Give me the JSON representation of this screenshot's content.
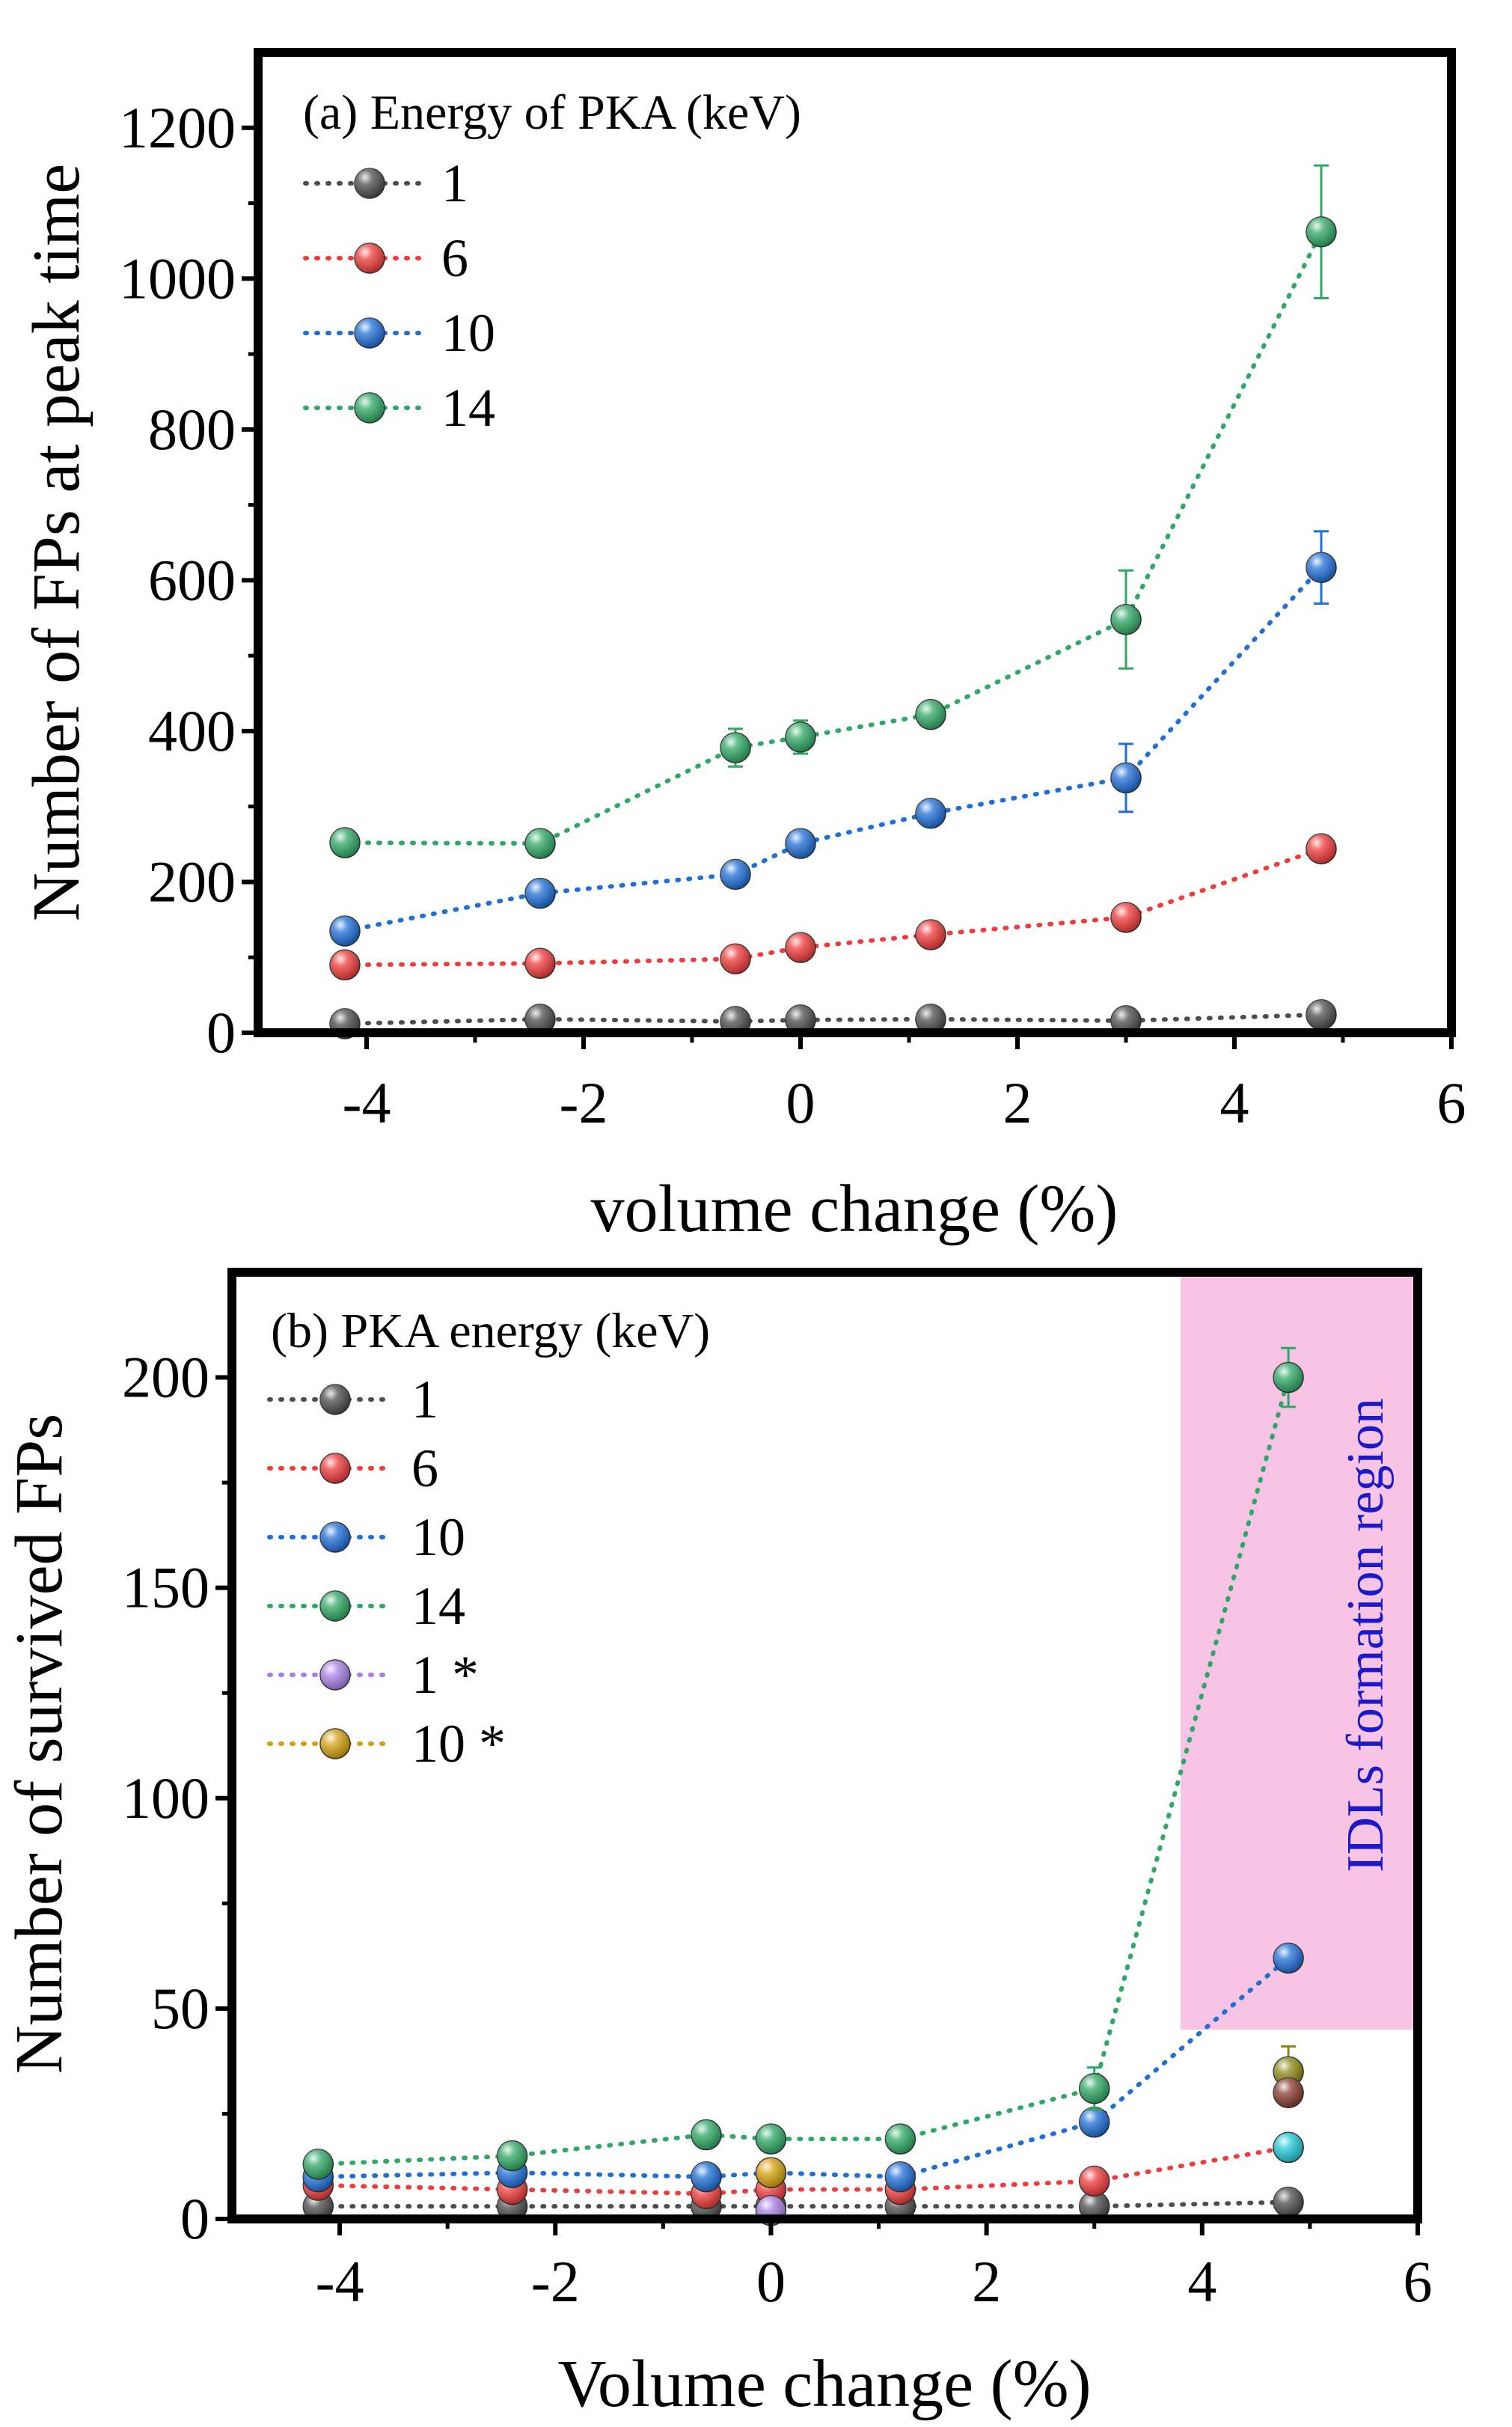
{
  "chart_data": [
    {
      "type": "line",
      "panel": "a",
      "xlabel": "volume change (%)",
      "ylabel": "Number of FPs at peak time",
      "xlim": [
        -5,
        6
      ],
      "ylim": [
        0,
        1300
      ],
      "xticks": [
        -4,
        -2,
        0,
        2,
        4,
        6
      ],
      "xtick_labels": [
        "-4",
        "-2",
        "0",
        "2",
        "4",
        "6"
      ],
      "yticks": [
        0,
        200,
        400,
        600,
        800,
        1000,
        1200
      ],
      "ytick_labels": [
        "0",
        "200",
        "400",
        "600",
        "800",
        "1000",
        "1200"
      ],
      "legend_title": "(a) Energy of PKA (keV)",
      "legend_position": "top-left",
      "series": [
        {
          "name": "1",
          "color": "#4d4d4d",
          "x": [
            -4.2,
            -2.4,
            -0.6,
            0,
            1.2,
            3.0,
            4.8
          ],
          "values": [
            12,
            18,
            15,
            17,
            18,
            16,
            24
          ],
          "errors": [
            0,
            0,
            0,
            0,
            0,
            0,
            0
          ]
        },
        {
          "name": "6",
          "color": "#ee3b3b",
          "x": [
            -4.2,
            -2.4,
            -0.6,
            0,
            1.2,
            3.0,
            4.8
          ],
          "values": [
            90,
            92,
            98,
            113,
            130,
            153,
            244
          ],
          "errors": [
            0,
            0,
            0,
            0,
            0,
            0,
            0
          ]
        },
        {
          "name": "10",
          "color": "#1f6fd6",
          "x": [
            -4.2,
            -2.4,
            -0.6,
            0,
            1.2,
            3.0,
            4.8
          ],
          "values": [
            135,
            185,
            210,
            251,
            291,
            338,
            617
          ],
          "errors": [
            0,
            0,
            0,
            0,
            0,
            45,
            48
          ]
        },
        {
          "name": "14",
          "color": "#2fa865",
          "x": [
            -4.2,
            -2.4,
            -0.6,
            0,
            1.2,
            3.0,
            4.8
          ],
          "values": [
            252,
            251,
            378,
            392,
            422,
            548,
            1062
          ],
          "errors": [
            0,
            0,
            25,
            22,
            15,
            65,
            88
          ]
        }
      ]
    },
    {
      "type": "line",
      "panel": "b",
      "xlabel": "Volume change (%)",
      "ylabel": "Number of survived FPs",
      "xlim": [
        -5,
        6
      ],
      "ylim": [
        0,
        225
      ],
      "xticks": [
        -4,
        -2,
        0,
        2,
        4,
        6
      ],
      "xtick_labels": [
        "-4",
        "-2",
        "0",
        "2",
        "4",
        "6"
      ],
      "yticks": [
        0,
        50,
        100,
        150,
        200
      ],
      "ytick_labels": [
        "0",
        "50",
        "100",
        "150",
        "200"
      ],
      "legend_title": "(b) PKA energy (keV)",
      "legend_position": "top-left",
      "shaded_region": {
        "label": "IDLs formation region",
        "label_color": "#1a1acc",
        "fill": "#f7c4e6",
        "x_range": [
          3.8,
          6
        ],
        "y_range": [
          45,
          225
        ]
      },
      "series": [
        {
          "name": "1",
          "color": "#4d4d4d",
          "x": [
            -4.2,
            -2.4,
            -0.6,
            0,
            1.2,
            3.0,
            4.8
          ],
          "values": [
            3,
            3,
            3,
            3,
            3,
            3,
            4
          ],
          "errors": [
            0,
            0,
            0,
            0,
            0,
            0,
            0
          ]
        },
        {
          "name": "6",
          "color": "#ee3b3b",
          "x": [
            -4.2,
            -2.4,
            -0.6,
            0,
            1.2,
            3.0,
            4.8
          ],
          "values": [
            8,
            7,
            6,
            7,
            7,
            9,
            17
          ],
          "errors": [
            0,
            0,
            0,
            0,
            0,
            0,
            0
          ]
        },
        {
          "name": "10",
          "color": "#1f6fd6",
          "x": [
            -4.2,
            -2.4,
            -0.6,
            0,
            1.2,
            3.0,
            4.8
          ],
          "values": [
            10,
            11,
            10,
            11,
            10,
            23,
            62
          ],
          "errors": [
            0,
            0,
            0,
            0,
            0,
            3,
            3
          ]
        },
        {
          "name": "14",
          "color": "#2fa865",
          "x": [
            -4.2,
            -2.4,
            -0.6,
            0,
            1.2,
            3.0,
            4.8
          ],
          "values": [
            13,
            15,
            20,
            19,
            19,
            31,
            200
          ],
          "errors": [
            0,
            0,
            0,
            0,
            0,
            5,
            7
          ]
        },
        {
          "name": "1 *",
          "color": "#a77fe3",
          "x": [
            0
          ],
          "values": [
            2
          ],
          "errors": [
            0
          ]
        },
        {
          "name": "10 *",
          "color": "#d4a010",
          "x": [
            0
          ],
          "values": [
            11
          ],
          "errors": [
            0
          ]
        }
      ],
      "extra_points_in_region": [
        {
          "x": 4.8,
          "y": 35,
          "color": "#8a8a18",
          "error": 6
        },
        {
          "x": 4.8,
          "y": 30,
          "color": "#8a3c30",
          "error": 0
        },
        {
          "x": 4.8,
          "y": 17,
          "color": "#22c8d8",
          "error": 0
        }
      ]
    }
  ]
}
